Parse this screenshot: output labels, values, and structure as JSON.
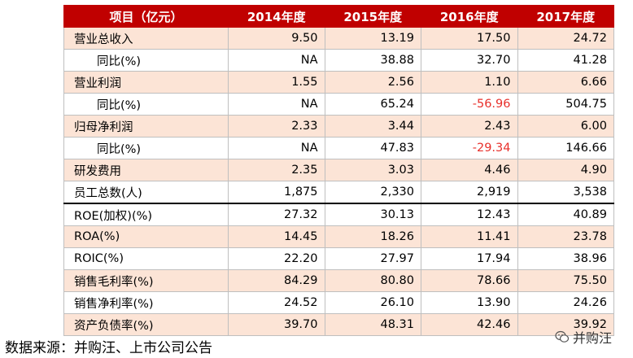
{
  "table": {
    "headers": [
      "项目（亿元）",
      "2014年度",
      "2015年度",
      "2016年度",
      "2017年度"
    ],
    "rows": [
      {
        "label": "营业总收入",
        "values": [
          "9.50",
          "13.19",
          "17.50",
          "24.72"
        ],
        "indent": false,
        "shade": true
      },
      {
        "label": "同比(%)",
        "values": [
          "NA",
          "38.88",
          "32.70",
          "41.28"
        ],
        "indent": true,
        "shade": false
      },
      {
        "label": "营业利润",
        "values": [
          "1.55",
          "2.56",
          "1.10",
          "6.66"
        ],
        "indent": false,
        "shade": true
      },
      {
        "label": "同比(%)",
        "values": [
          "NA",
          "65.24",
          "-56.96",
          "504.75"
        ],
        "indent": true,
        "shade": false,
        "negative": [
          2
        ]
      },
      {
        "label": "归母净利润",
        "values": [
          "2.33",
          "3.44",
          "2.43",
          "6.00"
        ],
        "indent": false,
        "shade": true
      },
      {
        "label": "同比(%)",
        "values": [
          "NA",
          "47.83",
          "-29.34",
          "146.66"
        ],
        "indent": true,
        "shade": false,
        "negative": [
          2
        ]
      },
      {
        "label": "研发费用",
        "values": [
          "2.35",
          "3.03",
          "4.46",
          "4.90"
        ],
        "indent": false,
        "shade": true
      },
      {
        "label": "员工总数(人)",
        "values": [
          "1,875",
          "2,330",
          "2,919",
          "3,538"
        ],
        "indent": false,
        "shade": false
      },
      {
        "label": "ROE(加权)(%)",
        "values": [
          "27.32",
          "30.13",
          "12.43",
          "40.89"
        ],
        "indent": false,
        "shade": false,
        "thick_top": true
      },
      {
        "label": "ROA(%)",
        "values": [
          "14.45",
          "18.26",
          "11.41",
          "23.78"
        ],
        "indent": false,
        "shade": true
      },
      {
        "label": "ROIC(%)",
        "values": [
          "22.20",
          "27.97",
          "17.94",
          "38.96"
        ],
        "indent": false,
        "shade": false
      },
      {
        "label": "销售毛利率(%)",
        "values": [
          "84.29",
          "80.80",
          "78.66",
          "75.50"
        ],
        "indent": false,
        "shade": true
      },
      {
        "label": "销售净利率(%)",
        "values": [
          "24.52",
          "26.10",
          "13.90",
          "24.26"
        ],
        "indent": false,
        "shade": false
      },
      {
        "label": "资产负债率(%)",
        "values": [
          "39.70",
          "48.31",
          "42.46",
          "39.92"
        ],
        "indent": false,
        "shade": true
      }
    ]
  },
  "source_note": "数据来源：并购汪、上市公司公告",
  "watermark": {
    "text": "并购汪",
    "icon": "wechat-icon"
  },
  "colors": {
    "header_bg": "#c00000",
    "shade_bg": "#fce4d6",
    "negative": "#e8302b"
  }
}
